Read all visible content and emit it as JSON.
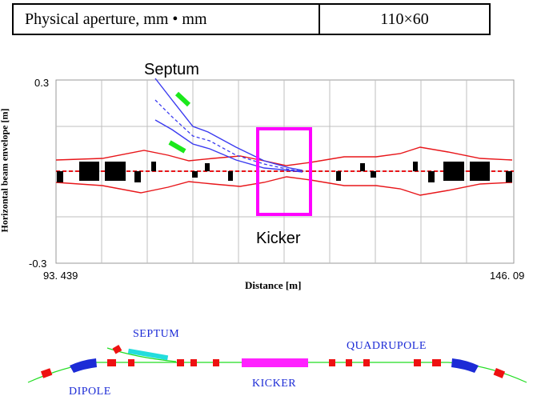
{
  "table": {
    "label": "Physical aperture, mm • mm",
    "value": "110×60"
  },
  "plot": {
    "ylabel": "Horizontal beam envelope [m]",
    "xlabel": "Distance [m]",
    "ytick_top": "0.3",
    "ytick_bottom": "-0.3",
    "xtick_left": "93. 439",
    "xtick_right": "146. 09",
    "septum_label": "Septum",
    "kicker_label": "Kicker",
    "xlim": [
      93.439,
      146.09
    ],
    "ylim": [
      -0.3,
      0.3
    ],
    "colors": {
      "envelope": "#e8161a",
      "injected_beam": "#3b3bf0",
      "septum": "#1be81b",
      "kicker": "#ff00ff",
      "grid": "#bfbfbf"
    }
  },
  "beamline": {
    "septum_label": "SEPTUM",
    "quadrupole_label": "QUADRUPOLE",
    "kicker_label": "KICKER",
    "dipole_label": "DIPOLE",
    "colors": {
      "quadrupole": "#ee1111",
      "dipole": "#1c2bd6",
      "kicker": "#ff22ff",
      "septum": "#22dddd",
      "line": "#22dd22"
    }
  }
}
